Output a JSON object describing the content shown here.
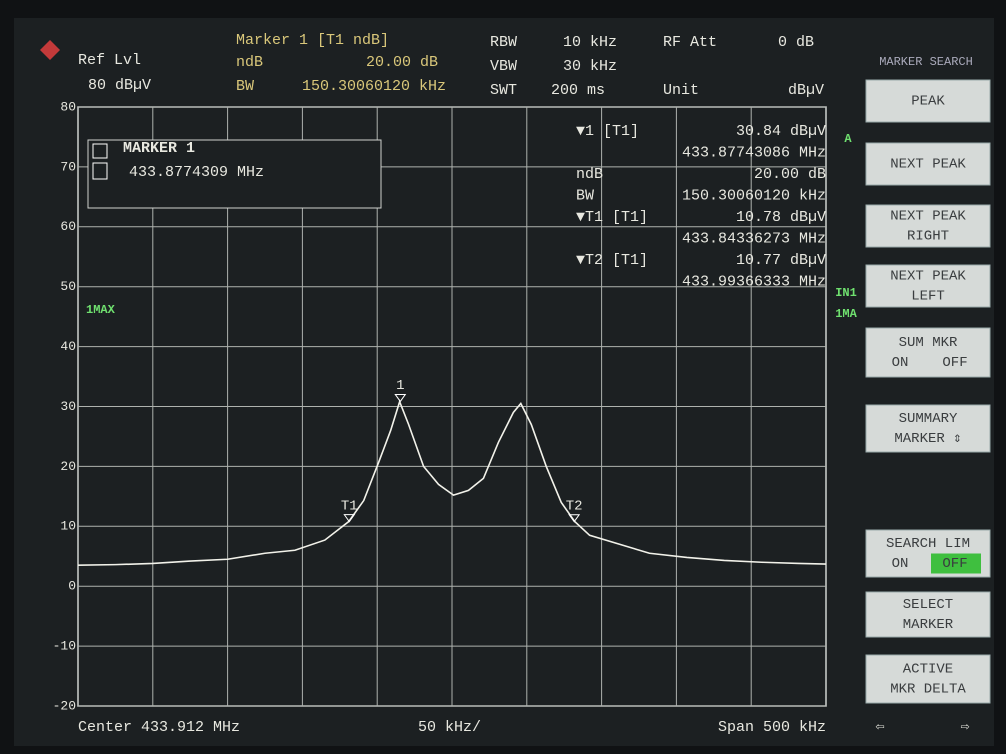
{
  "header": {
    "ref_lvl_label": "Ref Lvl",
    "ref_lvl": "80 dBµV",
    "marker_title": "Marker 1 [T1 ndB]",
    "ndb_label": "ndB",
    "ndb": "20.00 dB",
    "bw_label": "BW",
    "bw": "150.30060120 kHz",
    "rbw_label": "RBW",
    "rbw": "10 kHz",
    "vbw_label": "VBW",
    "vbw": "30 kHz",
    "swt_label": "SWT",
    "swt": "200 ms",
    "rf_att_label": "RF Att",
    "rf_att": "0 dB",
    "unit_label": "Unit",
    "unit": "dBµV"
  },
  "marker_box": {
    "title": "MARKER 1",
    "value": "433.8774309 MHz"
  },
  "readout": [
    [
      "▼1 [T1]",
      "30.84 dBµV"
    ],
    [
      "",
      "433.87743086 MHz"
    ],
    [
      "ndB",
      "20.00 dB"
    ],
    [
      "BW",
      "150.30060120 kHz"
    ],
    [
      "▼T1 [T1]",
      "10.78 dBµV"
    ],
    [
      "",
      "433.84336273 MHz"
    ],
    [
      "▼T2 [T1]",
      "10.77 dBµV"
    ],
    [
      "",
      "433.99366333 MHz"
    ]
  ],
  "side_labels": {
    "trace": "1MAX",
    "a": "A",
    "in1": "IN1",
    "ima": "1MA"
  },
  "softkeys": {
    "title": "MARKER SEARCH",
    "keys": [
      {
        "lines": [
          "PEAK"
        ]
      },
      {
        "lines": [
          "NEXT PEAK"
        ]
      },
      {
        "lines": [
          "NEXT PEAK",
          "RIGHT"
        ]
      },
      {
        "lines": [
          "NEXT PEAK",
          "LEFT"
        ]
      },
      {
        "lines": [
          "SUM MKR"
        ],
        "options": [
          "ON",
          "OFF"
        ]
      },
      {
        "lines": [
          "SUMMARY",
          "MARKER ⇕"
        ]
      },
      {
        "lines": [
          "SEARCH LIM"
        ],
        "options": [
          "ON",
          "OFF"
        ],
        "selected": 1
      },
      {
        "lines": [
          "SELECT",
          "MARKER"
        ]
      },
      {
        "lines": [
          "ACTIVE",
          "MKR DELTA"
        ]
      }
    ]
  },
  "footer": {
    "center": "Center 433.912 MHz",
    "div": "50 kHz/",
    "span": "Span 500 kHz"
  },
  "chart_data": {
    "type": "line",
    "xlim": [
      433.662,
      434.162
    ],
    "ylim": [
      -20,
      80
    ],
    "yticks": [
      80,
      70,
      60,
      50,
      40,
      30,
      20,
      10,
      0,
      -10,
      -20
    ],
    "grid": true,
    "x": [
      433.662,
      433.687,
      433.712,
      433.737,
      433.762,
      433.787,
      433.807,
      433.827,
      433.843,
      433.853,
      433.863,
      433.871,
      433.877,
      433.883,
      433.893,
      433.903,
      433.913,
      433.923,
      433.933,
      433.943,
      433.953,
      433.958,
      433.965,
      433.975,
      433.985,
      433.994,
      434.004,
      434.024,
      434.044,
      434.069,
      434.094,
      434.119,
      434.144,
      434.162
    ],
    "series": [
      {
        "color": "#f2f2ea",
        "values": [
          3.5,
          3.6,
          3.8,
          4.2,
          4.5,
          5.5,
          6,
          7.7,
          10.8,
          14.3,
          20.7,
          26,
          30.8,
          27,
          20,
          17,
          15.2,
          16,
          18,
          24,
          29,
          30.5,
          27,
          20,
          14,
          10.8,
          8.5,
          7,
          5.5,
          4.8,
          4.3,
          4,
          3.8,
          3.7
        ]
      }
    ],
    "markers": [
      {
        "label": "1",
        "x": 433.87743086,
        "y": 30.84
      },
      {
        "label": "T1",
        "x": 433.84336273,
        "y": 10.78
      },
      {
        "label": "T2",
        "x": 433.99366333,
        "y": 10.77
      }
    ]
  }
}
